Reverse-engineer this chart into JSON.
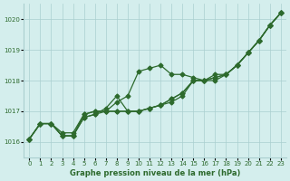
{
  "title": "Graphe pression niveau de la mer (hPa)",
  "xlim": [
    -0.5,
    23.5
  ],
  "ylim": [
    1015.5,
    1020.5
  ],
  "yticks": [
    1016,
    1017,
    1018,
    1019,
    1020
  ],
  "xticks": [
    0,
    1,
    2,
    3,
    4,
    5,
    6,
    7,
    8,
    9,
    10,
    11,
    12,
    13,
    14,
    15,
    16,
    17,
    18,
    19,
    20,
    21,
    22,
    23
  ],
  "bg_color": "#d4eeed",
  "line_color": "#2d6a2d",
  "grid_color": "#aacfcf",
  "series": [
    [
      1016.1,
      1016.6,
      1016.6,
      1016.2,
      1016.2,
      1016.8,
      1016.9,
      1017.0,
      1017.3,
      1017.5,
      1018.3,
      1018.4,
      1018.5,
      1018.2,
      1018.2,
      1018.1,
      1018.0,
      1018.0,
      1018.2,
      1018.5,
      1018.9,
      1019.3,
      1019.8,
      1020.2
    ],
    [
      1016.1,
      1016.6,
      1016.6,
      1016.2,
      1016.2,
      1016.8,
      1016.9,
      1017.1,
      1017.5,
      1017.0,
      1017.0,
      1017.1,
      1017.2,
      1017.3,
      1017.5,
      1018.0,
      1018.0,
      1018.1,
      1018.2,
      1018.5,
      1018.9,
      1019.3,
      1019.8,
      1020.2
    ],
    [
      1016.1,
      1016.6,
      1016.6,
      1016.2,
      1016.2,
      1016.9,
      1017.0,
      1017.0,
      1017.0,
      1017.0,
      1017.0,
      1017.1,
      1017.2,
      1017.4,
      1017.6,
      1018.0,
      1018.0,
      1018.1,
      1018.2,
      1018.5,
      1018.9,
      1019.3,
      1019.8,
      1020.2
    ],
    [
      1016.1,
      1016.6,
      1016.6,
      1016.3,
      1016.3,
      1016.9,
      1017.0,
      1017.0,
      1017.0,
      1017.0,
      1017.0,
      1017.1,
      1017.2,
      1017.4,
      1017.6,
      1018.0,
      1018.0,
      1018.2,
      1018.2,
      1018.5,
      1018.9,
      1019.3,
      1019.8,
      1020.2
    ]
  ]
}
